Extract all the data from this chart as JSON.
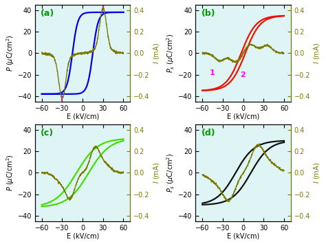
{
  "background_color": "#dff5f5",
  "panel_labels": [
    "(a)",
    "(b)",
    "(c)",
    "(d)"
  ],
  "label_color": "#009900",
  "xlim": [
    -70,
    70
  ],
  "ylim_P": [
    -45,
    45
  ],
  "ylim_I": [
    -0.45,
    0.45
  ],
  "xticks": [
    -60,
    -30,
    0,
    30,
    60
  ],
  "yticks_P": [
    -40,
    -20,
    0,
    20,
    40
  ],
  "yticks_I": [
    -0.4,
    -0.2,
    0.0,
    0.2,
    0.4
  ],
  "xlabel": "E (kV/cm)",
  "ylabel_Pa": "P ($\\mu$C/cm$^2$)",
  "ylabel_Pb": "P$_s$ ($\\mu$C/cm$^2$)",
  "ylabel_right": "I (mA)",
  "colors": {
    "a_hysteresis": "#0000ee",
    "b_hysteresis": "#ee1100",
    "c_hysteresis": "#44dd00",
    "d_hysteresis": "#111111",
    "current": "#7a7a00"
  },
  "marker_color": "#ff00ff",
  "tick_fontsize": 7,
  "label_fontsize": 7,
  "panel_fontsize": 9
}
